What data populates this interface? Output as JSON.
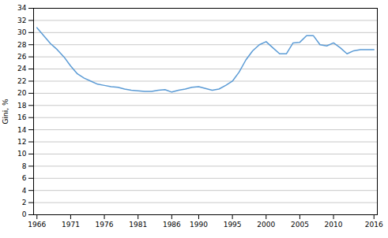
{
  "chart_data": {
    "type": "line",
    "ylabel": "Gini, %",
    "x": [
      1966,
      1967,
      1968,
      1969,
      1970,
      1971,
      1972,
      1973,
      1974,
      1975,
      1976,
      1977,
      1978,
      1979,
      1980,
      1981,
      1982,
      1983,
      1984,
      1985,
      1986,
      1987,
      1988,
      1989,
      1990,
      1991,
      1992,
      1993,
      1994,
      1995,
      1996,
      1997,
      1998,
      1999,
      2000,
      2001,
      2002,
      2003,
      2004,
      2005,
      2006,
      2007,
      2008,
      2009,
      2010,
      2011,
      2012,
      2013,
      2014,
      2015,
      2016
    ],
    "values": [
      30.8,
      29.5,
      28.2,
      27.2,
      26.0,
      24.5,
      23.2,
      22.5,
      22.0,
      21.5,
      21.3,
      21.1,
      21.0,
      20.7,
      20.5,
      20.4,
      20.3,
      20.3,
      20.5,
      20.6,
      20.2,
      20.5,
      20.7,
      21.0,
      21.1,
      20.8,
      20.5,
      20.7,
      21.3,
      22.0,
      23.5,
      25.5,
      27.0,
      28.0,
      28.5,
      27.5,
      26.5,
      26.5,
      28.3,
      28.4,
      29.5,
      29.5,
      28.0,
      27.8,
      28.3,
      27.5,
      26.5,
      27.0,
      27.2,
      27.2,
      27.2
    ],
    "color": "#5b9bd5",
    "xlim": [
      1965.5,
      2016.5
    ],
    "xticks": [
      1966,
      1971,
      1976,
      1981,
      1986,
      1990,
      1995,
      2000,
      2005,
      2010,
      2016
    ],
    "ylim": [
      0,
      34
    ],
    "yticks": [
      0,
      2,
      4,
      6,
      8,
      10,
      12,
      14,
      16,
      18,
      20,
      22,
      24,
      26,
      28,
      30,
      32,
      34
    ],
    "grid": "y"
  }
}
